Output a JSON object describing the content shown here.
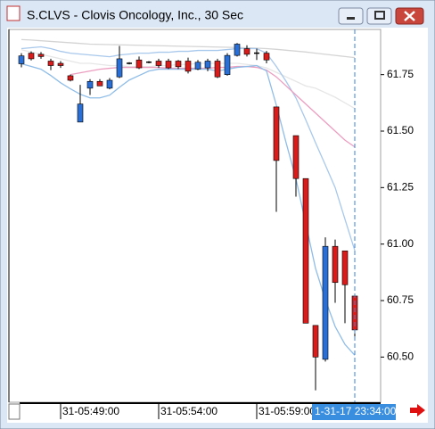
{
  "window_title": "S.CLVS - Clovis Oncology, Inc., 30 Sec",
  "chart_data": {
    "type": "candlestick",
    "categories": [
      null,
      null,
      null,
      null,
      "31-05:49:00",
      null,
      null,
      null,
      null,
      null,
      null,
      null,
      null,
      null,
      "31-05:54:00",
      null,
      null,
      null,
      null,
      null,
      null,
      null,
      null,
      null,
      "31-05:59:00",
      null,
      null,
      null,
      null,
      null,
      null,
      null,
      null,
      null,
      null
    ],
    "open": [
      61.798,
      61.845,
      61.84,
      61.81,
      61.8,
      61.745,
      61.54,
      61.69,
      61.72,
      61.69,
      61.74,
      61.8,
      61.815,
      61.805,
      61.81,
      61.81,
      61.81,
      61.81,
      61.775,
      61.78,
      61.81,
      61.75,
      61.835,
      61.865,
      61.845,
      61.845,
      61.607,
      null,
      61.48,
      61.29,
      60.64,
      60.49,
      60.99,
      60.97,
      60.77
    ],
    "high": [
      61.845,
      61.853,
      61.85,
      61.82,
      61.81,
      61.75,
      61.705,
      61.73,
      61.73,
      61.735,
      61.877,
      61.805,
      61.83,
      61.81,
      61.82,
      61.82,
      61.815,
      61.825,
      61.815,
      61.82,
      61.82,
      61.845,
      61.89,
      61.88,
      61.865,
      61.855,
      61.607,
      null,
      61.48,
      61.29,
      60.64,
      61.03,
      61.02,
      60.97,
      60.77
    ],
    "low": [
      61.782,
      61.813,
      61.82,
      61.77,
      61.78,
      61.72,
      61.54,
      61.66,
      61.7,
      61.685,
      61.735,
      61.795,
      61.775,
      61.8,
      61.78,
      61.775,
      61.775,
      61.755,
      61.77,
      61.765,
      61.735,
      61.745,
      61.83,
      61.83,
      61.815,
      61.8,
      61.143,
      null,
      61.21,
      60.65,
      60.353,
      60.48,
      60.74,
      60.65,
      60.58
    ],
    "close": [
      61.833,
      61.82,
      61.83,
      61.79,
      61.79,
      61.725,
      61.62,
      61.72,
      61.7,
      61.725,
      61.82,
      61.8,
      61.78,
      61.805,
      61.79,
      61.78,
      61.785,
      61.765,
      61.805,
      61.81,
      61.74,
      61.835,
      61.885,
      61.84,
      61.845,
      61.815,
      61.37,
      null,
      61.29,
      60.65,
      60.5,
      60.99,
      60.83,
      60.82,
      60.62
    ],
    "up_color": "#2a6fd6",
    "down_color": "#d81b1b",
    "overlays": [
      {
        "color": "#d4d4d4",
        "values": [
          61.905,
          61.903,
          61.9,
          61.897,
          61.894,
          61.891,
          61.888,
          61.885,
          61.884,
          61.883,
          61.882,
          61.881,
          61.88,
          61.879,
          61.878,
          61.877,
          61.876,
          61.875,
          61.874,
          61.873,
          61.872,
          61.871,
          61.87,
          61.869,
          61.867,
          61.865,
          61.862,
          61.858,
          61.854,
          61.85,
          61.845,
          61.84,
          61.835,
          61.83,
          61.825
        ]
      },
      {
        "color": "#e6e6e6",
        "values": [
          61.86,
          61.85,
          61.84,
          61.83,
          61.82,
          61.81,
          61.8,
          61.8,
          61.795,
          61.79,
          61.79,
          61.785,
          61.785,
          61.785,
          61.79,
          61.79,
          61.795,
          61.795,
          61.8,
          61.8,
          61.8,
          61.8,
          61.8,
          61.795,
          61.79,
          61.78,
          61.76,
          61.74,
          61.72,
          61.7,
          61.69,
          61.67,
          61.65,
          61.625,
          61.6
        ]
      },
      {
        "color": "#a8c8ec",
        "values": [
          61.865,
          61.869,
          61.873,
          61.865,
          61.853,
          61.845,
          61.841,
          61.837,
          61.833,
          61.829,
          61.837,
          61.841,
          61.845,
          61.845,
          61.849,
          61.849,
          61.853,
          61.853,
          61.857,
          61.857,
          61.857,
          61.861,
          61.865,
          61.865,
          61.865,
          61.845,
          61.786,
          61.72,
          61.647,
          61.55,
          61.448,
          61.35,
          61.25,
          61.11,
          60.972
        ]
      },
      {
        "color": "#ec9ec0",
        "values": [
          null,
          null,
          null,
          null,
          null,
          61.75,
          61.758,
          61.766,
          61.774,
          61.778,
          61.782,
          61.782,
          61.782,
          61.782,
          61.782,
          61.778,
          61.778,
          61.778,
          61.778,
          61.778,
          61.782,
          61.782,
          61.786,
          61.786,
          61.782,
          61.77,
          61.74,
          61.7,
          61.66,
          61.62,
          61.58,
          61.54,
          61.5,
          61.46,
          61.43
        ]
      },
      {
        "color": "#8fbde8",
        "values": [
          61.798,
          61.786,
          61.774,
          61.746,
          61.714,
          61.687,
          61.663,
          61.647,
          61.647,
          61.659,
          61.694,
          61.726,
          61.746,
          61.766,
          61.774,
          61.774,
          61.774,
          61.774,
          61.774,
          61.774,
          61.766,
          61.774,
          61.782,
          61.786,
          61.79,
          61.766,
          61.615,
          61.448,
          61.289,
          61.091,
          60.892,
          60.754,
          60.635,
          60.556,
          60.508
        ]
      }
    ],
    "ylim": [
      60.3,
      61.95
    ],
    "yticks": [
      61.75,
      {
        "value": 61.5,
        "label": "61.50"
      },
      61.25,
      {
        "value": 61,
        "label": "61.00"
      },
      60.75,
      {
        "value": 60.5,
        "label": "60.50"
      }
    ],
    "cursor_label": "1-31-17 23:34:00"
  }
}
